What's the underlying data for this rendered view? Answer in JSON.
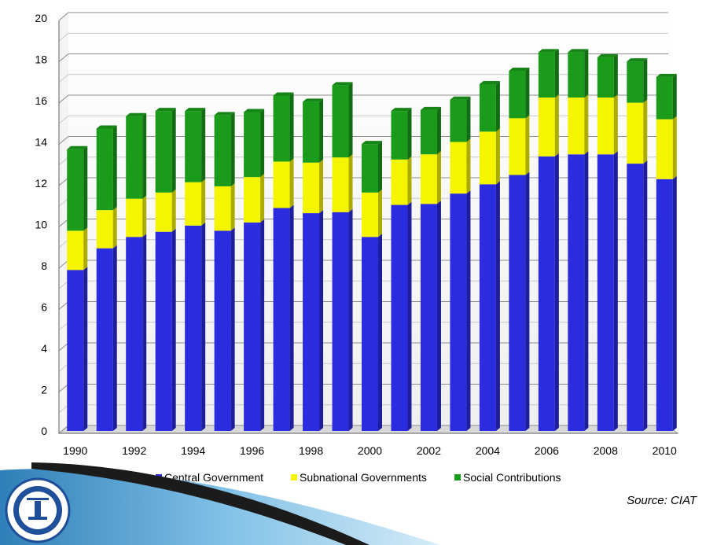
{
  "chart_data": {
    "type": "bar",
    "stacked": true,
    "categories": [
      "1990",
      "1991",
      "1992",
      "1993",
      "1994",
      "1995",
      "1996",
      "1997",
      "1998",
      "1999",
      "2000",
      "2001",
      "2002",
      "2003",
      "2004",
      "2005",
      "2006",
      "2007",
      "2008",
      "2009",
      "2010"
    ],
    "x_tick_labels": [
      "1990",
      "1992",
      "1994",
      "1996",
      "1998",
      "2000",
      "2002",
      "2004",
      "2006",
      "2008",
      "2010"
    ],
    "series": [
      {
        "name": "Central Government",
        "color": "#2B2BE0",
        "values": [
          7.8,
          8.85,
          9.4,
          9.65,
          9.95,
          9.7,
          10.1,
          10.8,
          10.55,
          10.6,
          9.4,
          10.95,
          11.0,
          11.5,
          11.95,
          12.4,
          13.3,
          13.4,
          13.4,
          12.95,
          12.2
        ]
      },
      {
        "name": "Subnational Governments",
        "color": "#F5F500",
        "values": [
          1.9,
          1.85,
          1.85,
          1.9,
          2.1,
          2.15,
          2.2,
          2.25,
          2.45,
          2.65,
          2.15,
          2.2,
          2.4,
          2.5,
          2.55,
          2.75,
          2.85,
          2.75,
          2.75,
          2.95,
          2.9
        ]
      },
      {
        "name": "Social Contributions",
        "color": "#1A9B1A",
        "values": [
          3.95,
          3.95,
          4.0,
          3.95,
          3.45,
          3.45,
          3.15,
          3.2,
          2.95,
          3.5,
          2.35,
          2.35,
          2.15,
          2.05,
          2.3,
          2.3,
          2.2,
          2.2,
          1.95,
          2.0,
          2.05
        ]
      }
    ],
    "ylim": [
      0,
      20
    ],
    "y_ticks": [
      0,
      2,
      4,
      6,
      8,
      10,
      12,
      14,
      16,
      18,
      20
    ],
    "legend_position": "bottom",
    "grid": true,
    "source": "Source: CIAT"
  }
}
